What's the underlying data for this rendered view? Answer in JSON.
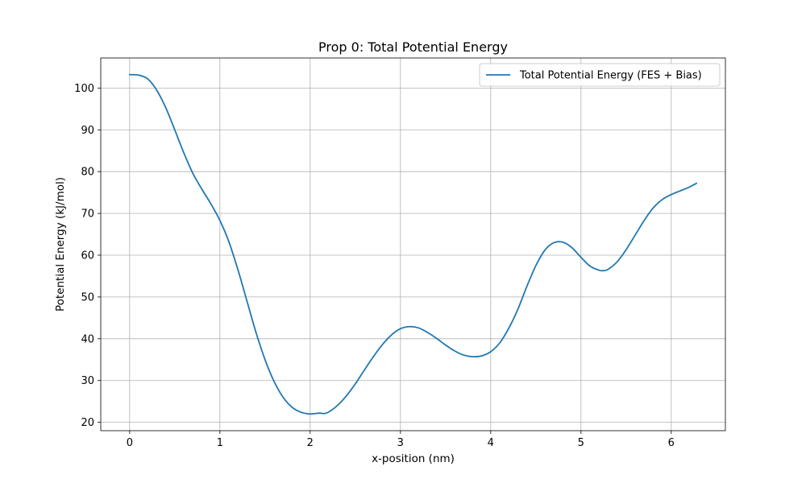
{
  "chart_data": {
    "type": "line",
    "title": "Prop 0: Total Potential Energy",
    "xlabel": "x-position (nm)",
    "ylabel": "Potential Energy (kJ/mol)",
    "xlim": [
      -0.32,
      6.6
    ],
    "ylim": [
      18.0,
      107.2
    ],
    "xticks": [
      0,
      1,
      2,
      3,
      4,
      5,
      6
    ],
    "yticks": [
      20,
      30,
      40,
      50,
      60,
      70,
      80,
      90,
      100
    ],
    "grid": true,
    "legend_position": "top-right",
    "series": [
      {
        "name": "Total Potential Energy (FES + Bias)",
        "color": "#1f77b4",
        "x": [
          0.0,
          0.1,
          0.2,
          0.3,
          0.4,
          0.5,
          0.6,
          0.7,
          0.8,
          0.9,
          1.0,
          1.1,
          1.2,
          1.3,
          1.4,
          1.5,
          1.6,
          1.7,
          1.8,
          1.9,
          2.0,
          2.1,
          2.15,
          2.2,
          2.3,
          2.4,
          2.5,
          2.6,
          2.7,
          2.8,
          2.9,
          3.0,
          3.1,
          3.2,
          3.3,
          3.4,
          3.5,
          3.6,
          3.7,
          3.8,
          3.9,
          4.0,
          4.1,
          4.2,
          4.3,
          4.4,
          4.5,
          4.6,
          4.7,
          4.8,
          4.9,
          5.0,
          5.1,
          5.2,
          5.25,
          5.3,
          5.4,
          5.5,
          5.6,
          5.7,
          5.8,
          5.9,
          6.0,
          6.1,
          6.2,
          6.28
        ],
        "y": [
          103.2,
          103.1,
          102.2,
          99.5,
          95.3,
          90.0,
          84.5,
          79.6,
          75.8,
          72.3,
          68.3,
          63.2,
          56.5,
          49.0,
          41.5,
          35.0,
          29.8,
          26.0,
          23.6,
          22.4,
          22.0,
          22.2,
          22.1,
          22.4,
          24.0,
          26.3,
          29.2,
          32.5,
          35.7,
          38.6,
          40.9,
          42.4,
          42.9,
          42.6,
          41.5,
          40.1,
          38.5,
          37.1,
          36.1,
          35.7,
          35.9,
          36.9,
          39.0,
          42.5,
          47.0,
          52.5,
          57.5,
          61.2,
          63.0,
          63.1,
          61.8,
          59.5,
          57.4,
          56.4,
          56.3,
          56.6,
          58.4,
          61.3,
          64.8,
          68.3,
          71.3,
          73.3,
          74.5,
          75.4,
          76.3,
          77.2
        ]
      }
    ]
  }
}
